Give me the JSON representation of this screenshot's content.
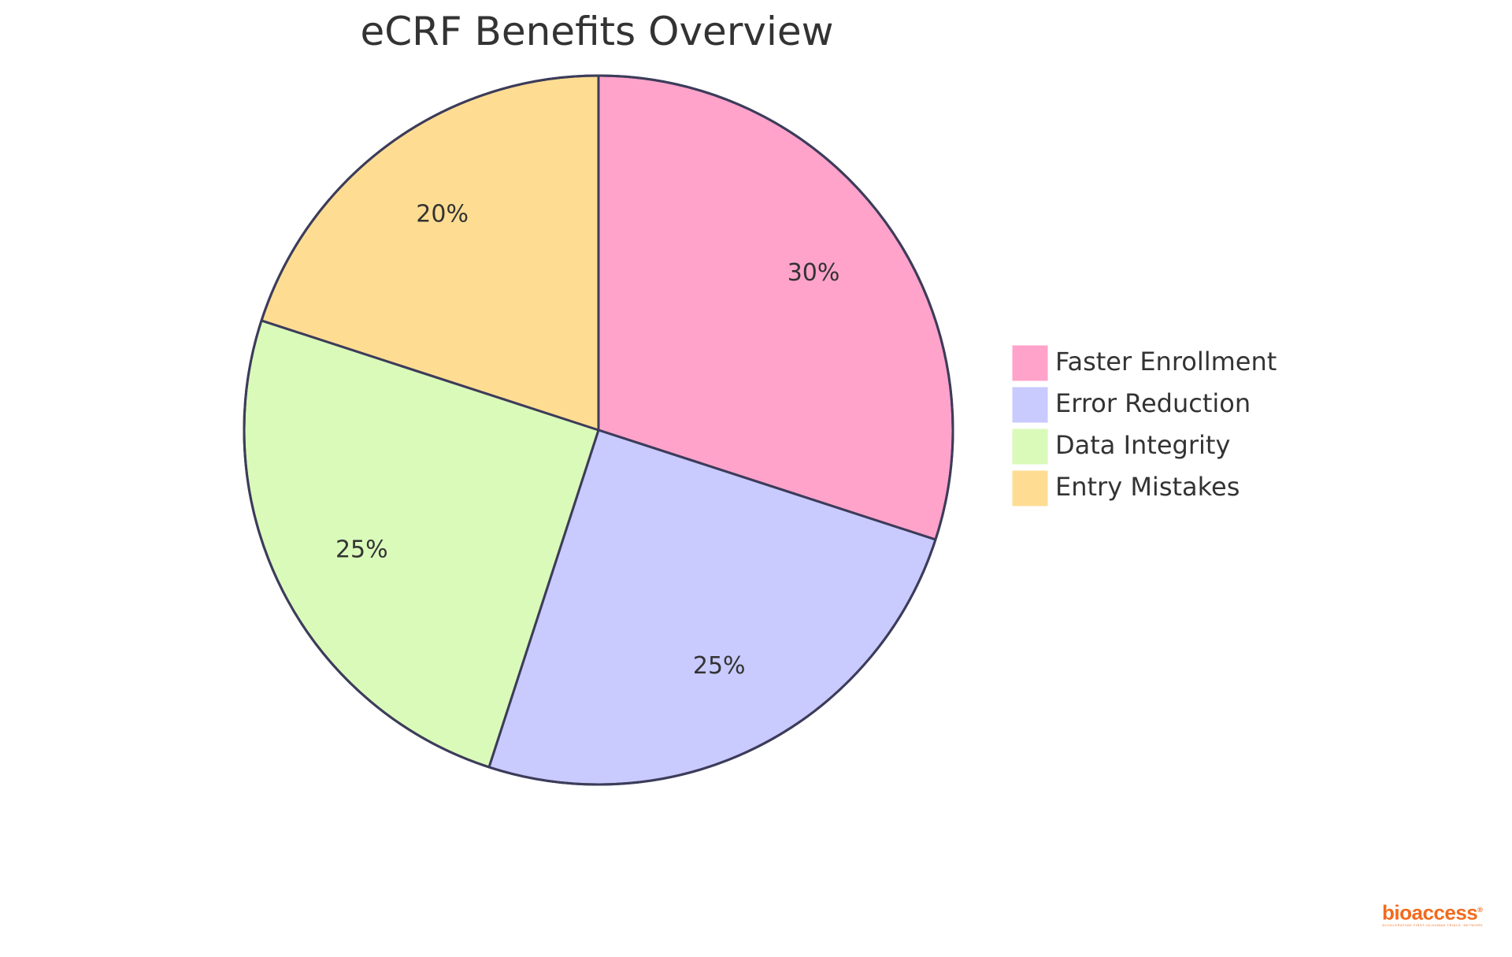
{
  "chart_data": {
    "type": "pie",
    "title": "eCRF Benefits Overview",
    "slices": [
      {
        "label": "Faster Enrollment",
        "value": 30,
        "display": "30%",
        "color": "#FFA3CB"
      },
      {
        "label": "Error Reduction",
        "value": 25,
        "display": "25%",
        "color": "#C9CAFE"
      },
      {
        "label": "Data Integrity",
        "value": 25,
        "display": "25%",
        "color": "#DAFABA"
      },
      {
        "label": "Entry Mistakes",
        "value": 20,
        "display": "20%",
        "color": "#FEDD93"
      }
    ],
    "start_angle": "12 o'clock",
    "direction": "clockwise",
    "outline_color": "#3C3C5A",
    "legend_position": "right"
  },
  "brand": {
    "name": "bioaccess",
    "registered_mark": "®",
    "tagline": "ACCELERATING FIRST-IN-HUMAN TRIALS. NETWORK",
    "color": "#F26B1D"
  }
}
